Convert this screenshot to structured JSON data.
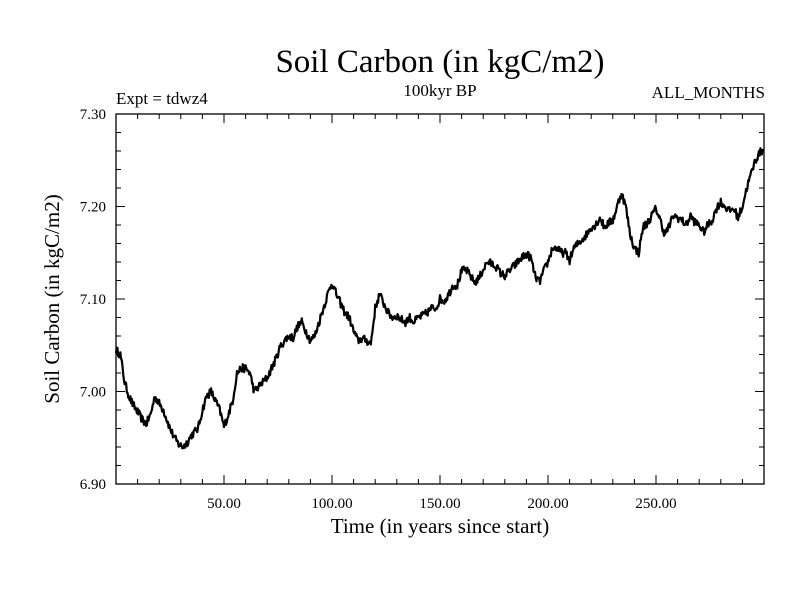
{
  "chart_data": {
    "type": "line",
    "title": "Soil Carbon (in kgC/m2)",
    "subtitle": "100kyr BP",
    "experiment_label": "Expt = tdwz4",
    "months_label": "ALL_MONTHS",
    "xlabel": "Time (in years since start)",
    "ylabel": "Soil Carbon (in kgC/m2)",
    "xlim": [
      0,
      300
    ],
    "ylim": [
      6.9,
      7.3
    ],
    "x_ticks": [
      {
        "value": 50,
        "label": "50.00"
      },
      {
        "value": 100,
        "label": "100.00"
      },
      {
        "value": 150,
        "label": "150.00"
      },
      {
        "value": 200,
        "label": "200.00"
      },
      {
        "value": 250,
        "label": "250.00"
      }
    ],
    "y_ticks": [
      {
        "value": 6.9,
        "label": "6.90"
      },
      {
        "value": 7.0,
        "label": "7.00"
      },
      {
        "value": 7.1,
        "label": "7.10"
      },
      {
        "value": 7.2,
        "label": "7.20"
      },
      {
        "value": 7.3,
        "label": "7.30"
      }
    ],
    "series": [
      {
        "name": "Soil Carbon",
        "color": "#000000",
        "x": [
          0,
          2,
          4,
          6,
          8,
          10,
          12,
          14,
          16,
          18,
          20,
          22,
          25,
          27,
          29,
          31,
          33,
          35,
          38,
          40,
          42,
          44,
          46,
          48,
          50,
          52,
          54,
          56,
          58,
          60,
          62,
          64,
          66,
          68,
          70,
          72,
          74,
          76,
          78,
          80,
          82,
          84,
          86,
          88,
          90,
          92,
          94,
          96,
          98,
          100,
          102,
          104,
          106,
          108,
          110,
          112,
          114,
          116,
          118,
          120,
          122,
          124,
          126,
          128,
          130,
          132,
          134,
          136,
          138,
          140,
          142,
          144,
          146,
          148,
          150,
          152,
          154,
          156,
          158,
          160,
          162,
          164,
          166,
          168,
          170,
          172,
          174,
          176,
          178,
          180,
          182,
          184,
          186,
          188,
          190,
          192,
          194,
          196,
          198,
          200,
          202,
          204,
          206,
          208,
          210,
          212,
          214,
          216,
          218,
          220,
          222,
          224,
          226,
          228,
          230,
          232,
          234,
          236,
          238,
          240,
          242,
          244,
          246,
          248,
          250,
          252,
          254,
          256,
          258,
          260,
          262,
          264,
          266,
          268,
          270,
          272,
          274,
          276,
          278,
          280,
          282,
          284,
          286,
          288,
          290,
          292,
          294,
          296,
          298,
          300
        ],
        "values": [
          7.045,
          7.04,
          7.01,
          6.995,
          6.985,
          6.978,
          6.97,
          6.965,
          6.975,
          6.995,
          6.987,
          6.98,
          6.96,
          6.95,
          6.943,
          6.94,
          6.945,
          6.953,
          6.96,
          6.98,
          6.995,
          7.0,
          6.99,
          6.98,
          6.962,
          6.975,
          6.99,
          7.02,
          7.025,
          7.025,
          7.02,
          7.0,
          7.005,
          7.01,
          7.015,
          7.025,
          7.035,
          7.048,
          7.055,
          7.06,
          7.058,
          7.07,
          7.075,
          7.065,
          7.055,
          7.06,
          7.075,
          7.09,
          7.105,
          7.118,
          7.105,
          7.095,
          7.085,
          7.08,
          7.065,
          7.055,
          7.057,
          7.055,
          7.052,
          7.09,
          7.105,
          7.095,
          7.085,
          7.08,
          7.082,
          7.078,
          7.075,
          7.08,
          7.075,
          7.08,
          7.082,
          7.085,
          7.09,
          7.09,
          7.1,
          7.098,
          7.105,
          7.115,
          7.115,
          7.13,
          7.132,
          7.125,
          7.118,
          7.122,
          7.132,
          7.14,
          7.138,
          7.135,
          7.128,
          7.125,
          7.13,
          7.135,
          7.14,
          7.145,
          7.148,
          7.145,
          7.125,
          7.118,
          7.13,
          7.14,
          7.155,
          7.155,
          7.15,
          7.15,
          7.142,
          7.155,
          7.16,
          7.165,
          7.17,
          7.178,
          7.18,
          7.188,
          7.178,
          7.182,
          7.185,
          7.2,
          7.215,
          7.2,
          7.17,
          7.155,
          7.15,
          7.178,
          7.182,
          7.19,
          7.198,
          7.185,
          7.17,
          7.178,
          7.19,
          7.188,
          7.185,
          7.18,
          7.19,
          7.183,
          7.18,
          7.172,
          7.18,
          7.185,
          7.198,
          7.205,
          7.2,
          7.195,
          7.198,
          7.188,
          7.2,
          7.22,
          7.235,
          7.25,
          7.258,
          7.262
        ]
      }
    ]
  }
}
